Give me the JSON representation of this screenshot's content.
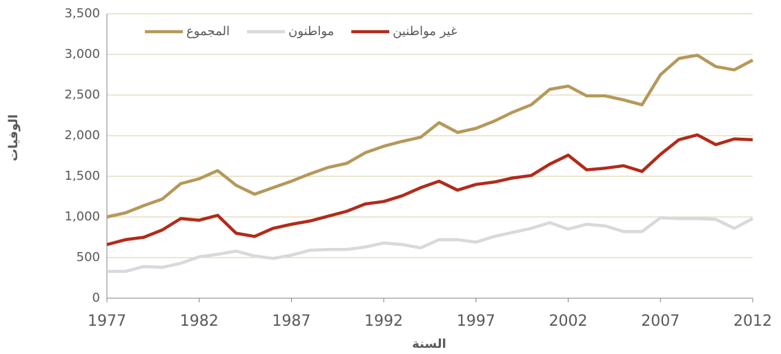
{
  "chart_data": {
    "type": "line",
    "x_label": "السنة",
    "y_label": "الوفيات",
    "x": [
      1977,
      1978,
      1979,
      1980,
      1981,
      1982,
      1983,
      1984,
      1985,
      1986,
      1987,
      1988,
      1989,
      1990,
      1991,
      1992,
      1993,
      1994,
      1995,
      1996,
      1997,
      1998,
      1999,
      2000,
      2001,
      2002,
      2003,
      2004,
      2005,
      2006,
      2007,
      2008,
      2009,
      2010,
      2011,
      2012
    ],
    "series": [
      {
        "name": "المجموع",
        "color": "#b5985a",
        "values": [
          1000,
          1050,
          1140,
          1220,
          1410,
          1470,
          1570,
          1390,
          1280,
          1360,
          1440,
          1530,
          1610,
          1660,
          1790,
          1870,
          1930,
          1980,
          2160,
          2040,
          2090,
          2180,
          2290,
          2380,
          2570,
          2610,
          2490,
          2490,
          2440,
          2380,
          2750,
          2950,
          2990,
          2850,
          2810,
          2930
        ]
      },
      {
        "name": "مواطنون",
        "color": "#d9d9d9",
        "values": [
          330,
          330,
          390,
          380,
          430,
          510,
          540,
          580,
          520,
          490,
          530,
          590,
          600,
          600,
          630,
          680,
          660,
          620,
          720,
          720,
          690,
          760,
          810,
          860,
          930,
          850,
          910,
          890,
          820,
          820,
          990,
          980,
          980,
          970,
          860,
          980
        ]
      },
      {
        "name": "غير مواطنين",
        "color": "#b22a1a",
        "values": [
          660,
          720,
          750,
          840,
          980,
          960,
          1020,
          800,
          760,
          860,
          910,
          950,
          1010,
          1070,
          1160,
          1190,
          1260,
          1360,
          1440,
          1330,
          1400,
          1430,
          1480,
          1510,
          1650,
          1760,
          1580,
          1600,
          1630,
          1560,
          1770,
          1950,
          2010,
          1890,
          1960,
          1950
        ]
      }
    ],
    "xlim": [
      1977,
      2012
    ],
    "xticks": [
      1977,
      1982,
      1987,
      1992,
      1997,
      2002,
      2007,
      2012
    ],
    "ylim": [
      0,
      3500
    ],
    "yticks": [
      0,
      500,
      {
        "value": 1000,
        "label": "1,000"
      },
      {
        "value": 1500,
        "label": "1,500"
      },
      {
        "value": 2000,
        "label": "2,000"
      },
      {
        "value": 2500,
        "label": "2,500"
      },
      {
        "value": 3000,
        "label": "3,000"
      },
      {
        "value": 3500,
        "label": "3,500"
      }
    ],
    "grid": true,
    "legend": "top-left"
  }
}
